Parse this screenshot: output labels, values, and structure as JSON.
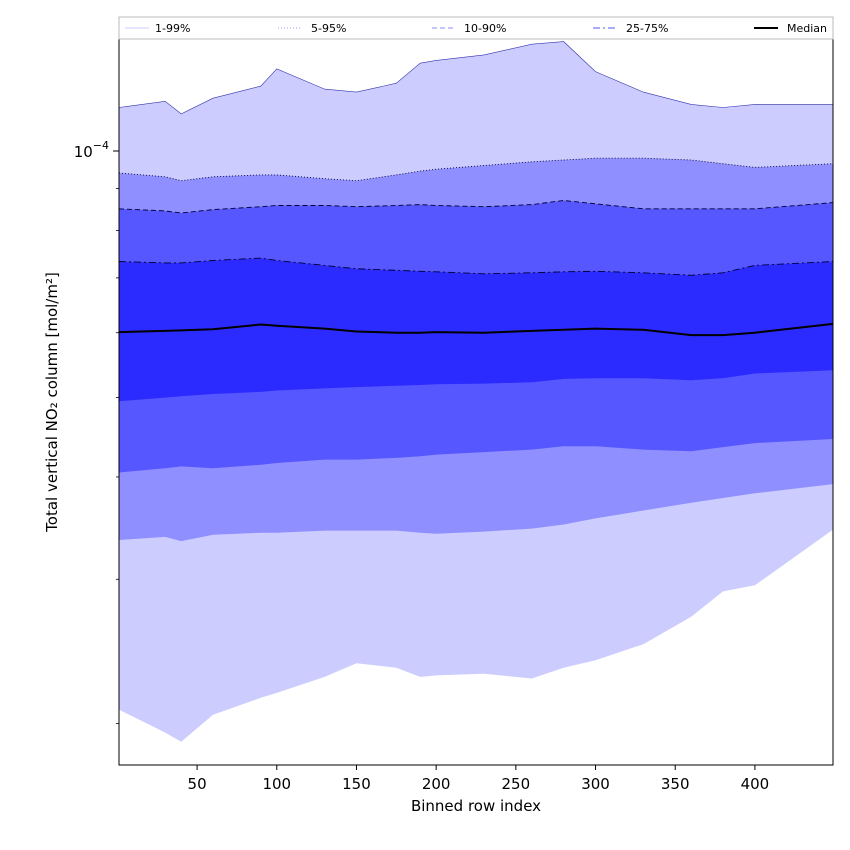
{
  "chart_data": {
    "type": "area",
    "xlabel": "Binned row index",
    "ylabel": "Total vertical NO₂ column [mol/m²]",
    "yscale": "log",
    "xlim": [
      1,
      449
    ],
    "ylim": [
      1.78e-05,
      0.000137
    ],
    "x_ticks": [
      50,
      100,
      150,
      200,
      250,
      300,
      350,
      400
    ],
    "y_ticks": [
      {
        "value": 0.0001,
        "label": "10",
        "exponent": "−4"
      }
    ],
    "y_minor_ticks": [
      2e-05,
      3e-05,
      4e-05,
      5e-05,
      6e-05,
      7e-05,
      8e-05,
      9e-05
    ],
    "legend_position": "top, above plot",
    "legend": [
      {
        "label": "1-99%",
        "style": "solid",
        "color": "#ccccff"
      },
      {
        "label": "5-95%",
        "style": "dotted",
        "color": "#9999ff"
      },
      {
        "label": "10-90%",
        "style": "dashed",
        "color": "#8888ff"
      },
      {
        "label": "25-75%",
        "style": "dashdot",
        "color": "#5555ff"
      },
      {
        "label": "Median",
        "style": "solid",
        "color": "#000000"
      }
    ],
    "x": [
      1,
      30,
      40,
      60,
      90,
      100,
      130,
      150,
      175,
      190,
      200,
      230,
      260,
      280,
      300,
      330,
      360,
      380,
      400,
      449
    ],
    "bands": [
      {
        "name": "1-99%",
        "color": "#ccccff",
        "upper": [
          0.000113,
          0.000115,
          0.000111,
          0.000116,
          0.00012,
          0.000126,
          0.000119,
          0.000118,
          0.000121,
          0.000128,
          0.000129,
          0.000131,
          0.000135,
          0.000136,
          0.000125,
          0.000118,
          0.000114,
          0.000113,
          0.000114,
          0.000114
        ],
        "lower": [
          2.08e-05,
          1.95e-05,
          1.9e-05,
          2.05e-05,
          2.15e-05,
          2.18e-05,
          2.28e-05,
          2.37e-05,
          2.34e-05,
          2.28e-05,
          2.29e-05,
          2.3e-05,
          2.27e-05,
          2.34e-05,
          2.39e-05,
          2.5e-05,
          2.7e-05,
          2.9e-05,
          2.95e-05,
          3.45e-05
        ]
      },
      {
        "name": "5-95%",
        "color": "#8f8fff",
        "upper": [
          9.4e-05,
          9.3e-05,
          9.2e-05,
          9.3e-05,
          9.35e-05,
          9.35e-05,
          9.25e-05,
          9.2e-05,
          9.35e-05,
          9.45e-05,
          9.5e-05,
          9.6e-05,
          9.7e-05,
          9.75e-05,
          9.8e-05,
          9.8e-05,
          9.75e-05,
          9.65e-05,
          9.55e-05,
          9.65e-05
        ],
        "lower": [
          3.35e-05,
          3.38e-05,
          3.34e-05,
          3.4e-05,
          3.42e-05,
          3.42e-05,
          3.44e-05,
          3.44e-05,
          3.44e-05,
          3.42e-05,
          3.41e-05,
          3.43e-05,
          3.46e-05,
          3.5e-05,
          3.56e-05,
          3.64e-05,
          3.72e-05,
          3.77e-05,
          3.82e-05,
          3.92e-05
        ]
      },
      {
        "name": "10-90%",
        "color": "#5757ff",
        "upper": [
          8.5e-05,
          8.45e-05,
          8.4e-05,
          8.48e-05,
          8.55e-05,
          8.58e-05,
          8.58e-05,
          8.55e-05,
          8.58e-05,
          8.6e-05,
          8.58e-05,
          8.55e-05,
          8.6e-05,
          8.7e-05,
          8.62e-05,
          8.5e-05,
          8.5e-05,
          8.5e-05,
          8.5e-05,
          8.65e-05
        ],
        "lower": [
          4.05e-05,
          4.1e-05,
          4.12e-05,
          4.1e-05,
          4.14e-05,
          4.16e-05,
          4.2e-05,
          4.2e-05,
          4.22e-05,
          4.24e-05,
          4.26e-05,
          4.29e-05,
          4.32e-05,
          4.36e-05,
          4.36e-05,
          4.32e-05,
          4.3e-05,
          4.35e-05,
          4.4e-05,
          4.45e-05
        ]
      },
      {
        "name": "25-75%",
        "color": "#2b2bff",
        "upper": [
          7.33e-05,
          7.3e-05,
          7.3e-05,
          7.35e-05,
          7.4e-05,
          7.35e-05,
          7.25e-05,
          7.18e-05,
          7.15e-05,
          7.13e-05,
          7.12e-05,
          7.08e-05,
          7.1e-05,
          7.12e-05,
          7.13e-05,
          7.1e-05,
          7.05e-05,
          7.1e-05,
          7.25e-05,
          7.33e-05
        ],
        "lower": [
          4.95e-05,
          5e-05,
          5.02e-05,
          5.05e-05,
          5.08e-05,
          5.1e-05,
          5.13e-05,
          5.15e-05,
          5.17e-05,
          5.18e-05,
          5.19e-05,
          5.2e-05,
          5.22e-05,
          5.27e-05,
          5.28e-05,
          5.28e-05,
          5.25e-05,
          5.28e-05,
          5.35e-05,
          5.4e-05
        ]
      }
    ],
    "median": {
      "name": "Median",
      "color": "#000000",
      "values": [
        6.01e-05,
        6.03e-05,
        6.04e-05,
        6.06e-05,
        6.14e-05,
        6.12e-05,
        6.07e-05,
        6.02e-05,
        6e-05,
        6e-05,
        6.01e-05,
        6e-05,
        6.03e-05,
        6.05e-05,
        6.07e-05,
        6.05e-05,
        5.96e-05,
        5.96e-05,
        6e-05,
        6.15e-05
      ]
    }
  }
}
